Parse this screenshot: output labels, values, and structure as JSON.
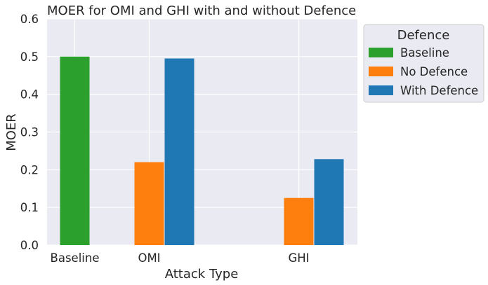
{
  "chart_data": {
    "type": "bar",
    "title": "MOER for OMI and GHI with and without Defence",
    "xlabel": "Attack Type",
    "ylabel": "MOER",
    "categories": [
      "Baseline",
      "OMI",
      "GHI"
    ],
    "ylim": [
      0,
      0.6
    ],
    "yticks": [
      "0.0",
      "0.1",
      "0.2",
      "0.3",
      "0.4",
      "0.5",
      "0.6"
    ],
    "grid": true,
    "legend": {
      "title": "Defence",
      "placement": "outside-top-right"
    },
    "series": [
      {
        "name": "Baseline",
        "color": "#2ca02c",
        "values": [
          0.5,
          null,
          null
        ]
      },
      {
        "name": "No Defence",
        "color": "#ff7f0e",
        "values": [
          null,
          0.22,
          0.125
        ]
      },
      {
        "name": "With Defence",
        "color": "#1f77b4",
        "values": [
          null,
          0.495,
          0.228
        ]
      }
    ],
    "colors": {
      "plot_background": "#eaeaf2",
      "grid": "#ffffff"
    }
  }
}
